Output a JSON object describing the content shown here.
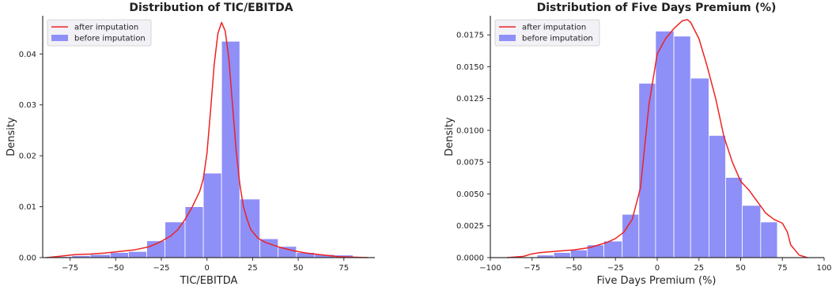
{
  "chart_data": [
    {
      "type": "bar",
      "title": "Distribution of TIC/EBITDA",
      "xlabel": "TIC/EBITDA",
      "ylabel": "Density",
      "xlim": [
        -90,
        92
      ],
      "ylim": [
        0,
        0.0475
      ],
      "xticks": [
        -75,
        -50,
        -25,
        0,
        25,
        50,
        75
      ],
      "xtick_labels": [
        "−75",
        "−50",
        "−25",
        "0",
        "25",
        "50",
        "75"
      ],
      "yticks": [
        0.0,
        0.01,
        0.02,
        0.03,
        0.04
      ],
      "ytick_labels": [
        "0.00",
        "0.01",
        "0.02",
        "0.03",
        "0.04"
      ],
      "grid": false,
      "legend_position": "top-left",
      "series": [
        {
          "name": "before imputation",
          "kind": "histogram",
          "color": "#8f8ff8",
          "bins": [
            {
              "x0": -84,
              "x1": -74,
              "value": 0.0002
            },
            {
              "x0": -74,
              "x1": -64,
              "value": 0.0004
            },
            {
              "x0": -64,
              "x1": -53,
              "value": 0.0006
            },
            {
              "x0": -53,
              "x1": -43,
              "value": 0.001
            },
            {
              "x0": -43,
              "x1": -33,
              "value": 0.0012
            },
            {
              "x0": -33,
              "x1": -23,
              "value": 0.0033
            },
            {
              "x0": -23,
              "x1": -12,
              "value": 0.007
            },
            {
              "x0": -12,
              "x1": -2,
              "value": 0.01
            },
            {
              "x0": -2,
              "x1": 8,
              "value": 0.0166
            },
            {
              "x0": 8,
              "x1": 18,
              "value": 0.0425
            },
            {
              "x0": 18,
              "x1": 29,
              "value": 0.0115
            },
            {
              "x0": 29,
              "x1": 39,
              "value": 0.0037
            },
            {
              "x0": 39,
              "x1": 49,
              "value": 0.0022
            },
            {
              "x0": 49,
              "x1": 59,
              "value": 0.001
            },
            {
              "x0": 59,
              "x1": 70,
              "value": 0.0006
            },
            {
              "x0": 70,
              "x1": 80,
              "value": 0.0005
            }
          ]
        },
        {
          "name": "after imputation",
          "kind": "line",
          "color": "#ee2222",
          "x": [
            -88,
            -80,
            -72,
            -64,
            -56,
            -48,
            -40,
            -32,
            -26,
            -20,
            -16,
            -12,
            -8,
            -4,
            -2,
            0,
            2,
            4,
            6,
            8,
            10,
            12,
            14,
            16,
            18,
            20,
            22,
            24,
            28,
            32,
            36,
            40,
            48,
            56,
            64,
            72,
            80,
            88
          ],
          "y": [
            0.0,
            0.0003,
            0.0006,
            0.0007,
            0.0009,
            0.0012,
            0.0015,
            0.0021,
            0.003,
            0.0042,
            0.0055,
            0.0075,
            0.01,
            0.013,
            0.0155,
            0.0205,
            0.029,
            0.038,
            0.044,
            0.0462,
            0.0445,
            0.039,
            0.03,
            0.021,
            0.0145,
            0.01,
            0.0075,
            0.0055,
            0.0038,
            0.003,
            0.0025,
            0.002,
            0.0013,
            0.0008,
            0.0005,
            0.0002,
            0.0001,
            0.0
          ]
        }
      ]
    },
    {
      "type": "bar",
      "title": "Distribution of Five Days Premium (%)",
      "xlabel": "Five Days Premium (%)",
      "ylabel": "Density",
      "xlim": [
        -100,
        100
      ],
      "ylim": [
        0,
        0.019
      ],
      "xticks": [
        -100,
        -75,
        -50,
        -25,
        0,
        25,
        50,
        75,
        100
      ],
      "xtick_labels": [
        "−100",
        "−75",
        "−50",
        "−25",
        "0",
        "25",
        "50",
        "75",
        "100"
      ],
      "yticks": [
        0.0,
        0.0025,
        0.005,
        0.0075,
        0.01,
        0.0125,
        0.015,
        0.0175
      ],
      "ytick_labels": [
        "0.0000",
        "0.0025",
        "0.0050",
        "0.0075",
        "0.0100",
        "0.0125",
        "0.0150",
        "0.0175"
      ],
      "grid": false,
      "legend_position": "top-left",
      "series": [
        {
          "name": "before imputation",
          "kind": "histogram",
          "color": "#8f8ff8",
          "bins": [
            {
              "x0": -72,
              "x1": -62,
              "value": 0.0002
            },
            {
              "x0": -62,
              "x1": -52,
              "value": 0.0004
            },
            {
              "x0": -52,
              "x1": -42,
              "value": 0.0006
            },
            {
              "x0": -42,
              "x1": -32,
              "value": 0.001
            },
            {
              "x0": -32,
              "x1": -21,
              "value": 0.0013
            },
            {
              "x0": -21,
              "x1": -11,
              "value": 0.0034
            },
            {
              "x0": -11,
              "x1": -1,
              "value": 0.0137
            },
            {
              "x0": -1,
              "x1": 10,
              "value": 0.0178
            },
            {
              "x0": 10,
              "x1": 20,
              "value": 0.0174
            },
            {
              "x0": 20,
              "x1": 31,
              "value": 0.0141
            },
            {
              "x0": 31,
              "x1": 41,
              "value": 0.0096
            },
            {
              "x0": 41,
              "x1": 51,
              "value": 0.0063
            },
            {
              "x0": 51,
              "x1": 62,
              "value": 0.0041
            },
            {
              "x0": 62,
              "x1": 72,
              "value": 0.0028
            }
          ]
        },
        {
          "name": "after imputation",
          "kind": "line",
          "color": "#ee2222",
          "x": [
            -90,
            -80,
            -75,
            -70,
            -60,
            -50,
            -45,
            -40,
            -35,
            -30,
            -25,
            -20,
            -15,
            -10,
            -5,
            0,
            5,
            10,
            15,
            18,
            20,
            25,
            30,
            35,
            40,
            45,
            50,
            55,
            60,
            65,
            70,
            75,
            78,
            80,
            85,
            90
          ],
          "y": [
            0.0,
            0.0001,
            0.0003,
            0.0004,
            0.0005,
            0.0006,
            0.0007,
            0.0008,
            0.001,
            0.0012,
            0.0015,
            0.002,
            0.003,
            0.0055,
            0.012,
            0.016,
            0.0172,
            0.018,
            0.0186,
            0.0187,
            0.0185,
            0.0172,
            0.015,
            0.0125,
            0.0095,
            0.0075,
            0.006,
            0.0053,
            0.0044,
            0.0035,
            0.003,
            0.0027,
            0.002,
            0.001,
            0.0002,
            0.0
          ]
        }
      ]
    }
  ]
}
